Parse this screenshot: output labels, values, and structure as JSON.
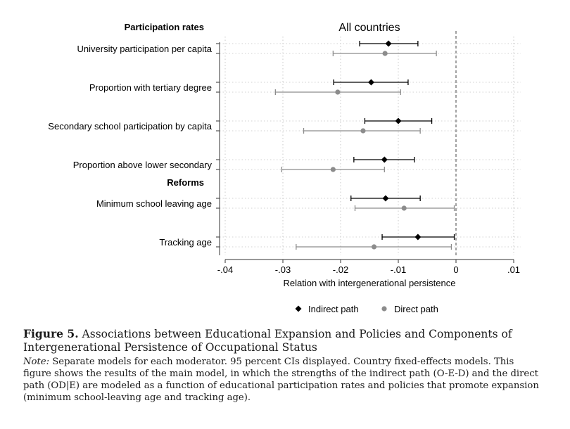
{
  "chart_data": {
    "type": "scatter",
    "title": "All countries",
    "xlabel": "Relation with intergenerational persistence",
    "ylabel": "",
    "xlim": [
      -0.04,
      0.01
    ],
    "xticks": [
      -0.04,
      -0.03,
      -0.02,
      -0.01,
      0,
      0.01
    ],
    "xtick_labels": [
      "-.04",
      "-.03",
      "-.02",
      "-.01",
      "0",
      ".01"
    ],
    "reference_line": {
      "x": 0,
      "style": "dashed"
    },
    "grid": true,
    "legend_position": "bottom",
    "groups": [
      {
        "label": "Participation rates",
        "before_category": 0
      },
      {
        "label": "Reforms",
        "before_category": 4
      }
    ],
    "categories": [
      "University participation per capita",
      "Proportion with tertiary degree",
      "Secondary school participation by capita",
      "Proportion above lower secondary",
      "Minimum school leaving age",
      "Tracking age"
    ],
    "series": [
      {
        "name": "Indirect path",
        "marker": "diamond",
        "color": "#000000",
        "estimates": [
          -0.0117,
          -0.0147,
          -0.01,
          -0.0124,
          -0.0122,
          -0.0066
        ],
        "ci_low": [
          -0.0167,
          -0.0212,
          -0.0158,
          -0.0177,
          -0.0182,
          -0.0128
        ],
        "ci_high": [
          -0.0066,
          -0.0083,
          -0.0042,
          -0.0072,
          -0.0062,
          -0.0003
        ]
      },
      {
        "name": "Direct path",
        "marker": "circle",
        "color": "#8c8c8c",
        "estimates": [
          -0.0123,
          -0.0205,
          -0.0161,
          -0.0213,
          -0.009,
          -0.0142
        ],
        "ci_low": [
          -0.0213,
          -0.0313,
          -0.0264,
          -0.0302,
          -0.0175,
          -0.0277
        ],
        "ci_high": [
          -0.0034,
          -0.0096,
          -0.0062,
          -0.0124,
          -0.0003,
          -0.0008
        ]
      }
    ]
  },
  "caption": {
    "figure_label": "Figure 5.",
    "figure_title": "Associations between Educational Expansion and Policies and Components of Intergenerational Persistence of Occupational Status",
    "note_label": "Note:",
    "note_text": "Separate models for each moderator. 95 percent CIs displayed. Country fixed-effects models. This figure shows the results of the main model, in which the strengths of the indirect path (O-E-D) and the direct path (OD|E) are modeled as a function of educational participation rates and policies that promote expansion (minimum school-leaving age and tracking age)."
  }
}
